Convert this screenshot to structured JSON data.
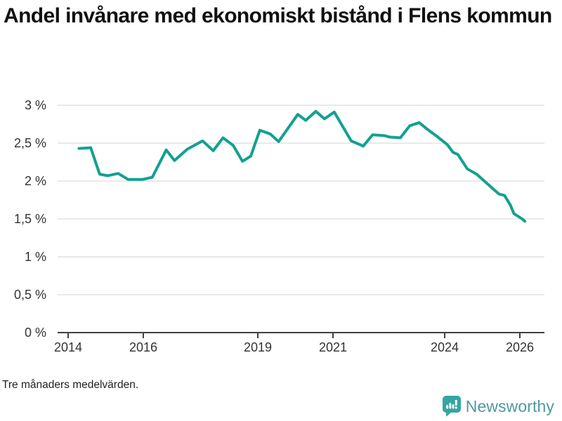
{
  "title": "Andel invånare med ekonomiskt bistånd i Flens kommun",
  "footnote": "Tre månaders medelvärden.",
  "branding": {
    "name": "Newsworthy",
    "icon": "newsworthy-bar-chart-bubble-icon",
    "icon_color": "#35a5a1",
    "text_color": "#4f99a0"
  },
  "colors": {
    "line": "#13a091",
    "grid": "#e2e2e2",
    "axis": "#404040",
    "tick_text": "#333333",
    "title_text": "#111111"
  },
  "chart_data": {
    "type": "line",
    "title": "Andel invånare med ekonomiskt bistånd i Flens kommun",
    "subtitle": "Tre månaders medelvärden.",
    "xlabel": "",
    "ylabel": "",
    "unit": "%",
    "grid": true,
    "legend": "none",
    "xlim": [
      2013.7,
      2026.7
    ],
    "ylim": [
      0,
      3.2
    ],
    "y_tick_labels": [
      "3 %",
      "2,5 %",
      "2 %",
      "1,5 %",
      "1 %",
      "0,5 %",
      "0 %"
    ],
    "y_tick_values": [
      3,
      2.5,
      2,
      1.5,
      1,
      0.5,
      0
    ],
    "x_tick_labels": [
      "2014",
      "2016",
      "2019",
      "2021",
      "2024",
      "2026"
    ],
    "x_tick_values": [
      2014,
      2016,
      2019,
      2021,
      2024,
      2026
    ],
    "series": [
      {
        "name": "Andel invånare med ekonomiskt bistånd",
        "x": [
          2014.29,
          2014.6,
          2014.84,
          2015.05,
          2015.33,
          2015.6,
          2015.98,
          2016.24,
          2016.61,
          2016.83,
          2017.17,
          2017.58,
          2017.86,
          2018.12,
          2018.39,
          2018.64,
          2018.86,
          2019.1,
          2019.38,
          2019.6,
          2020.11,
          2020.32,
          2020.59,
          2020.82,
          2021.08,
          2021.53,
          2021.72,
          2021.85,
          2022.1,
          2022.41,
          2022.56,
          2022.84,
          2023.09,
          2023.34,
          2023.59,
          2023.84,
          2024.09,
          2024.24,
          2024.37,
          2024.62,
          2024.87,
          2025.21,
          2025.46,
          2025.61,
          2025.77,
          2025.86,
          2026.08,
          2026.15
        ],
        "y": [
          2.43,
          2.44,
          2.09,
          2.07,
          2.1,
          2.02,
          2.02,
          2.05,
          2.41,
          2.27,
          2.42,
          2.53,
          2.4,
          2.57,
          2.47,
          2.26,
          2.33,
          2.67,
          2.62,
          2.52,
          2.88,
          2.8,
          2.92,
          2.82,
          2.91,
          2.53,
          2.49,
          2.46,
          2.61,
          2.6,
          2.58,
          2.57,
          2.73,
          2.77,
          2.67,
          2.58,
          2.48,
          2.38,
          2.35,
          2.16,
          2.09,
          1.94,
          1.83,
          1.81,
          1.68,
          1.57,
          1.5,
          1.47
        ]
      }
    ]
  }
}
